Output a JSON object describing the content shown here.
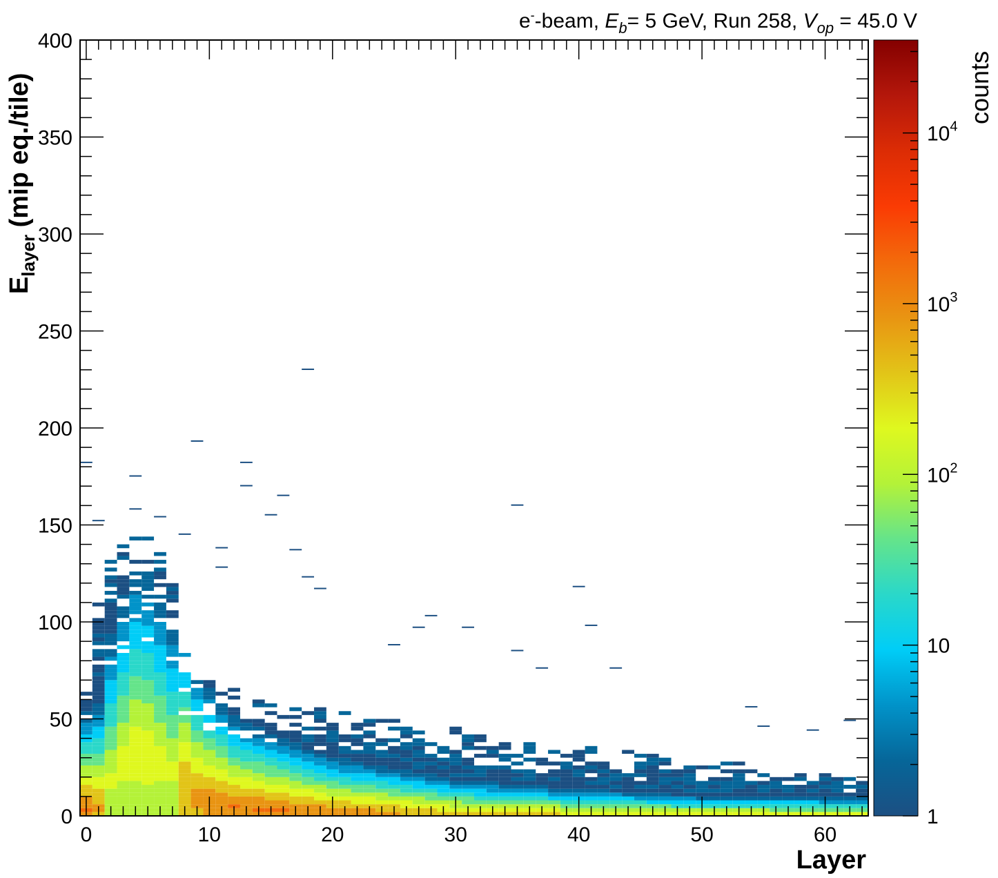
{
  "chart_data": {
    "type": "heatmap",
    "title": {
      "prefix": "e",
      "prefix_sup": "-",
      "beam": "-beam, ",
      "eb_symbol": "E",
      "eb_sub": "b",
      "eb_value": "= 5 GeV, Run 258, ",
      "vop_symbol": "V",
      "vop_sub": "op",
      "vop_value": " = 45.0 V"
    },
    "xlabel": "Layer",
    "ylabel": {
      "main": "E",
      "sub": "layer",
      "unit": " (mip eq./tile)"
    },
    "xlim": [
      -0.5,
      63.5
    ],
    "ylim": [
      0,
      400
    ],
    "x_ticks": [
      0,
      10,
      20,
      30,
      40,
      50,
      60
    ],
    "x_tick_labels": [
      "0",
      "10",
      "20",
      "30",
      "40",
      "50",
      "60"
    ],
    "y_ticks": [
      0,
      50,
      100,
      150,
      200,
      250,
      300,
      350,
      400
    ],
    "y_tick_labels": [
      "0",
      "50",
      "100",
      "150",
      "200",
      "250",
      "300",
      "350",
      "400"
    ],
    "colorbar": {
      "title": "counts",
      "scale": "log",
      "range": [
        1,
        35000
      ],
      "ticks": [
        1,
        10,
        100,
        1000,
        10000
      ],
      "tick_labels": [
        {
          "base": "1",
          "exp": ""
        },
        {
          "base": "10",
          "exp": ""
        },
        {
          "base": "10",
          "exp": "2"
        },
        {
          "base": "10",
          "exp": "3"
        },
        {
          "base": "10",
          "exp": "4"
        }
      ],
      "palette": [
        "#1c4f82",
        "#066699",
        "#0193c9",
        "#00cdf7",
        "#2ad8c9",
        "#65e48a",
        "#b4f238",
        "#dff81f",
        "#e2c418",
        "#e99412",
        "#f36a0b",
        "#fa3b04",
        "#dc2c05",
        "#b4170b",
        "#840000"
      ]
    },
    "layers": [
      {
        "layer": 0,
        "peak": 3,
        "peak_counts": 1200,
        "width": 12,
        "max_energy": 70
      },
      {
        "layer": 1,
        "peak": 4,
        "peak_counts": 700,
        "width": 14,
        "max_energy": 110
      },
      {
        "layer": 2,
        "peak": 20,
        "peak_counts": 150,
        "width": 26,
        "max_energy": 140
      },
      {
        "layer": 3,
        "peak": 32,
        "peak_counts": 160,
        "width": 28,
        "max_energy": 140
      },
      {
        "layer": 4,
        "peak": 40,
        "peak_counts": 170,
        "width": 30,
        "max_energy": 145
      },
      {
        "layer": 5,
        "peak": 38,
        "peak_counts": 170,
        "width": 30,
        "max_energy": 145
      },
      {
        "layer": 6,
        "peak": 32,
        "peak_counts": 160,
        "width": 28,
        "max_energy": 140
      },
      {
        "layer": 7,
        "peak": 26,
        "peak_counts": 150,
        "width": 26,
        "max_energy": 135
      },
      {
        "layer": 8,
        "peak": 20,
        "peak_counts": 500,
        "width": 20,
        "max_energy": 85
      },
      {
        "layer": 9,
        "peak": 12,
        "peak_counts": 700,
        "width": 16,
        "max_energy": 75
      },
      {
        "layer": 10,
        "peak": 9,
        "peak_counts": 900,
        "width": 14,
        "max_energy": 70
      },
      {
        "layer": 12,
        "peak": 5,
        "peak_counts": 1100,
        "width": 11,
        "max_energy": 65
      },
      {
        "layer": 15,
        "peak": 3,
        "peak_counts": 1300,
        "width": 9,
        "max_energy": 60
      },
      {
        "layer": 20,
        "peak": 2,
        "peak_counts": 900,
        "width": 7,
        "max_energy": 55
      },
      {
        "layer": 30,
        "peak": 1,
        "peak_counts": 400,
        "width": 5,
        "max_energy": 45
      },
      {
        "layer": 40,
        "peak": 1,
        "peak_counts": 250,
        "width": 4,
        "max_energy": 35
      },
      {
        "layer": 50,
        "peak": 1,
        "peak_counts": 200,
        "width": 3,
        "max_energy": 28
      },
      {
        "layer": 63,
        "peak": 1,
        "peak_counts": 150,
        "width": 3,
        "max_energy": 20
      }
    ],
    "outliers": [
      {
        "layer": 0,
        "energy": 182
      },
      {
        "layer": 1,
        "energy": 152
      },
      {
        "layer": 4,
        "energy": 175
      },
      {
        "layer": 4,
        "energy": 158
      },
      {
        "layer": 6,
        "energy": 154
      },
      {
        "layer": 8,
        "energy": 145
      },
      {
        "layer": 9,
        "energy": 193
      },
      {
        "layer": 11,
        "energy": 138
      },
      {
        "layer": 11,
        "energy": 128
      },
      {
        "layer": 13,
        "energy": 182
      },
      {
        "layer": 13,
        "energy": 170
      },
      {
        "layer": 15,
        "energy": 155
      },
      {
        "layer": 16,
        "energy": 165
      },
      {
        "layer": 18,
        "energy": 230
      },
      {
        "layer": 17,
        "energy": 137
      },
      {
        "layer": 18,
        "energy": 123
      },
      {
        "layer": 19,
        "energy": 117
      },
      {
        "layer": 25,
        "energy": 88
      },
      {
        "layer": 27,
        "energy": 97
      },
      {
        "layer": 28,
        "energy": 103
      },
      {
        "layer": 31,
        "energy": 97
      },
      {
        "layer": 35,
        "energy": 160
      },
      {
        "layer": 35,
        "energy": 85
      },
      {
        "layer": 37,
        "energy": 76
      },
      {
        "layer": 40,
        "energy": 118
      },
      {
        "layer": 41,
        "energy": 98
      },
      {
        "layer": 43,
        "energy": 76
      },
      {
        "layer": 54,
        "energy": 56
      },
      {
        "layer": 55,
        "energy": 46
      },
      {
        "layer": 59,
        "energy": 44
      },
      {
        "layer": 62,
        "energy": 49
      }
    ]
  }
}
